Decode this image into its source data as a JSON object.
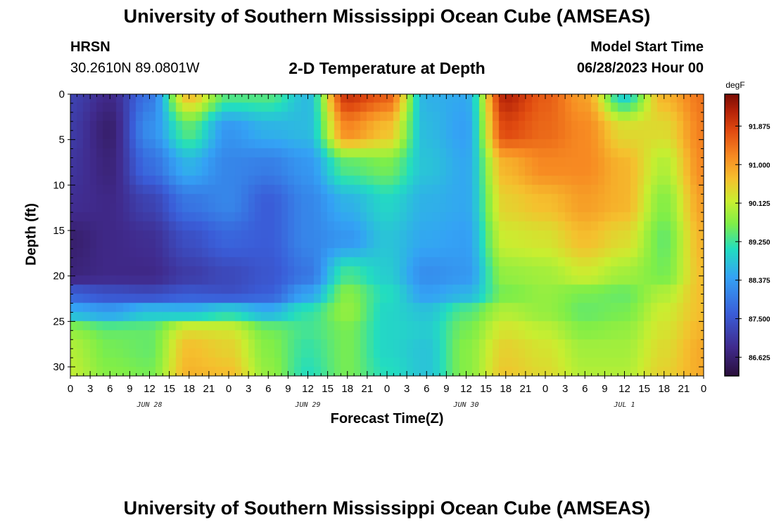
{
  "header": {
    "title": "University of Southern Mississippi Ocean Cube (AMSEAS)",
    "station": "HRSN",
    "coords": "30.2610N  89.0801W",
    "model_start_label": "Model Start Time",
    "model_start_value": "06/28/2023 Hour 00",
    "footer_title": "University of Southern Mississippi Ocean Cube (AMSEAS)"
  },
  "chart_data": {
    "type": "heatmap",
    "title": "2-D Temperature at Depth",
    "xlabel": "Forecast Time(Z)",
    "ylabel": "Depth (ft)",
    "x_hours_range": [
      0,
      96
    ],
    "y_depth_range": [
      0,
      31
    ],
    "x_ticks": [
      {
        "hour": 0,
        "label": "0"
      },
      {
        "hour": 3,
        "label": "3"
      },
      {
        "hour": 6,
        "label": "6"
      },
      {
        "hour": 9,
        "label": "9"
      },
      {
        "hour": 12,
        "label": "12"
      },
      {
        "hour": 15,
        "label": "15"
      },
      {
        "hour": 18,
        "label": "18"
      },
      {
        "hour": 21,
        "label": "21"
      },
      {
        "hour": 24,
        "label": "0"
      },
      {
        "hour": 27,
        "label": "3"
      },
      {
        "hour": 30,
        "label": "6"
      },
      {
        "hour": 33,
        "label": "9"
      },
      {
        "hour": 36,
        "label": "12"
      },
      {
        "hour": 39,
        "label": "15"
      },
      {
        "hour": 42,
        "label": "18"
      },
      {
        "hour": 45,
        "label": "21"
      },
      {
        "hour": 48,
        "label": "0"
      },
      {
        "hour": 51,
        "label": "3"
      },
      {
        "hour": 54,
        "label": "6"
      },
      {
        "hour": 57,
        "label": "9"
      },
      {
        "hour": 60,
        "label": "12"
      },
      {
        "hour": 63,
        "label": "15"
      },
      {
        "hour": 66,
        "label": "18"
      },
      {
        "hour": 69,
        "label": "21"
      },
      {
        "hour": 72,
        "label": "0"
      },
      {
        "hour": 75,
        "label": "3"
      },
      {
        "hour": 78,
        "label": "6"
      },
      {
        "hour": 81,
        "label": "9"
      },
      {
        "hour": 84,
        "label": "12"
      },
      {
        "hour": 87,
        "label": "15"
      },
      {
        "hour": 90,
        "label": "18"
      },
      {
        "hour": 93,
        "label": "21"
      },
      {
        "hour": 96,
        "label": "0"
      }
    ],
    "date_labels": [
      {
        "hour": 12,
        "label": "JUN 28"
      },
      {
        "hour": 36,
        "label": "JUN 29"
      },
      {
        "hour": 60,
        "label": "JUN 30"
      },
      {
        "hour": 84,
        "label": "JUL 1"
      }
    ],
    "y_ticks": [
      {
        "depth": 0,
        "label": "0"
      },
      {
        "depth": 5,
        "label": "5"
      },
      {
        "depth": 10,
        "label": "10"
      },
      {
        "depth": 15,
        "label": "15"
      },
      {
        "depth": 20,
        "label": "20"
      },
      {
        "depth": 25,
        "label": "25"
      },
      {
        "depth": 30,
        "label": "30"
      }
    ],
    "colorbar": {
      "unit": "degF",
      "range": [
        86.2,
        92.6
      ],
      "labels": [
        {
          "value": 86.625,
          "label": "86.625"
        },
        {
          "value": 87.5,
          "label": "87.500"
        },
        {
          "value": 88.375,
          "label": "88.375"
        },
        {
          "value": 89.25,
          "label": "89.250"
        },
        {
          "value": 90.125,
          "label": "90.125"
        },
        {
          "value": 91.0,
          "label": "91.000"
        },
        {
          "value": 91.875,
          "label": "91.875"
        }
      ]
    },
    "grid_hours": [
      0,
      6,
      12,
      18,
      24,
      30,
      36,
      42,
      48,
      54,
      60,
      66,
      72,
      78,
      84,
      90,
      96
    ],
    "grid_depths": [
      0,
      4,
      8,
      12,
      16,
      20,
      22,
      24,
      26,
      28,
      31
    ],
    "values": [
      [
        87.2,
        86.8,
        87.9,
        90.7,
        89.4,
        89.4,
        88.7,
        92.0,
        91.6,
        88.6,
        88.5,
        92.2,
        91.6,
        91.0,
        88.9,
        90.8,
        91.4
      ],
      [
        87.1,
        86.6,
        88.2,
        89.4,
        88.3,
        88.6,
        88.7,
        91.2,
        90.7,
        88.7,
        88.4,
        91.8,
        91.5,
        91.2,
        90.4,
        90.4,
        91.3
      ],
      [
        87.0,
        86.7,
        87.8,
        88.6,
        88.1,
        88.0,
        88.3,
        89.4,
        89.6,
        88.8,
        88.5,
        90.8,
        91.2,
        91.2,
        90.8,
        90.0,
        91.2
      ],
      [
        86.9,
        86.8,
        87.2,
        87.9,
        88.1,
        87.6,
        88.1,
        88.6,
        89.0,
        88.6,
        88.5,
        90.5,
        90.7,
        91.0,
        90.8,
        89.7,
        91.0
      ],
      [
        86.6,
        86.8,
        86.9,
        87.4,
        87.7,
        87.6,
        88.1,
        88.3,
        88.8,
        88.5,
        88.4,
        90.2,
        90.3,
        90.7,
        90.4,
        89.5,
        90.8
      ],
      [
        86.7,
        86.8,
        86.8,
        87.1,
        87.3,
        87.5,
        87.9,
        89.3,
        88.9,
        88.2,
        88.3,
        89.8,
        89.9,
        90.2,
        89.9,
        89.6,
        90.7
      ],
      [
        87.6,
        87.4,
        87.3,
        87.5,
        87.4,
        87.6,
        88.4,
        89.7,
        89.1,
        88.4,
        88.6,
        89.6,
        89.8,
        89.6,
        89.5,
        90.0,
        90.7
      ],
      [
        88.6,
        88.4,
        88.8,
        88.7,
        89.0,
        88.6,
        89.2,
        89.8,
        89.0,
        88.8,
        89.4,
        90.0,
        89.8,
        89.5,
        89.6,
        90.2,
        90.7
      ],
      [
        89.8,
        89.5,
        89.5,
        90.4,
        90.3,
        89.6,
        89.3,
        89.6,
        89.0,
        88.9,
        89.6,
        90.3,
        90.1,
        89.7,
        89.8,
        90.3,
        90.8
      ],
      [
        90.0,
        89.6,
        89.5,
        90.7,
        90.5,
        89.7,
        89.2,
        89.6,
        89.0,
        88.8,
        89.7,
        90.5,
        90.3,
        89.9,
        89.9,
        90.4,
        90.9
      ],
      [
        90.1,
        89.7,
        89.6,
        90.8,
        90.7,
        89.8,
        89.1,
        89.6,
        89.1,
        88.8,
        89.7,
        90.6,
        90.4,
        90.0,
        90.0,
        90.5,
        90.9
      ]
    ]
  }
}
